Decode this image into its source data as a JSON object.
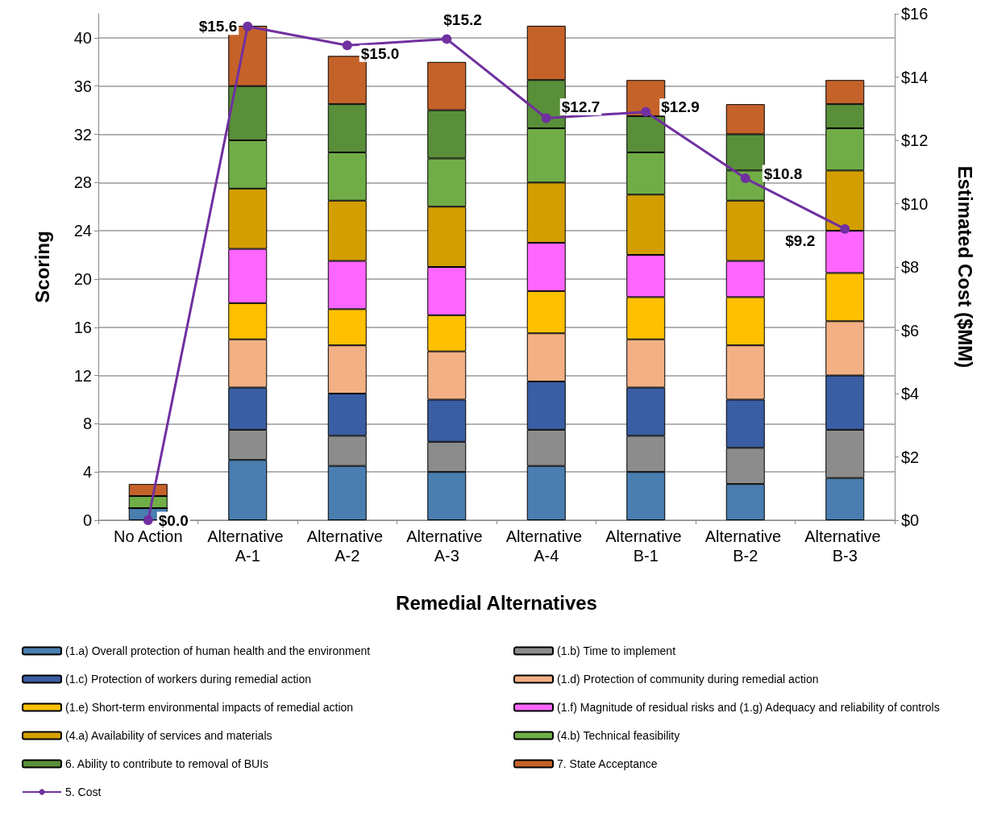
{
  "chart_data": {
    "type": "bar",
    "stacked": true,
    "xlabel": "Remedial Alternatives",
    "ylabel": "Scoring",
    "y2label": "Estimated Cost ($MM)",
    "categories": [
      "No Action",
      "Alternative A-1",
      "Alternative A-2",
      "Alternative A-3",
      "Alternative A-4",
      "Alternative B-1",
      "Alternative B-2",
      "Alternative B-3"
    ],
    "series": [
      {
        "name": "(1.a) Overall protection of human health and the environment",
        "color": "#4a7eb0",
        "values": [
          1,
          5,
          4.5,
          4,
          4.5,
          4,
          3,
          3.5
        ]
      },
      {
        "name": "(1.b) Time to implement",
        "color": "#8c8c8c",
        "values": [
          0,
          2.5,
          2.5,
          2.5,
          3,
          3,
          3,
          4
        ]
      },
      {
        "name": "(1.c) Protection of workers during remedial action",
        "color": "#3a5ea3",
        "values": [
          0,
          3.5,
          3.5,
          3.5,
          4,
          4,
          4,
          4.5
        ]
      },
      {
        "name": "(1.d) Protection of community during remedial action",
        "color": "#f2b084",
        "values": [
          0,
          4,
          4,
          4,
          4,
          4,
          4.5,
          4.5
        ]
      },
      {
        "name": "(1.e) Short-term environmental impacts of remedial action",
        "color": "#ffc000",
        "values": [
          0,
          3,
          3,
          3,
          3.5,
          3.5,
          4,
          4
        ]
      },
      {
        "name": "(1.f) Magnitude of residual risks and (1.g) Adequacy and reliability of controls",
        "color": "#ff66ff",
        "values": [
          0,
          4.5,
          4,
          4,
          4,
          3.5,
          3,
          3.5
        ]
      },
      {
        "name": "(4.a) Availability of services and materials",
        "color": "#d39e00",
        "values": [
          0,
          5,
          5,
          5,
          5,
          5,
          5,
          5
        ]
      },
      {
        "name": "(4.b) Technical feasibility",
        "color": "#70ad47",
        "values": [
          1,
          4,
          4,
          4,
          4.5,
          3.5,
          2.5,
          3.5
        ]
      },
      {
        "name": "6. Ability to contribute to removal of BUIs",
        "color": "#5a8f3a",
        "values": [
          0,
          4.5,
          4,
          4,
          4,
          3,
          3,
          2
        ]
      },
      {
        "name": "7. State Acceptance",
        "color": "#c5622a",
        "values": [
          1,
          5,
          4,
          4,
          4.5,
          3,
          2.5,
          2
        ]
      },
      {
        "name": "5. Cost",
        "type": "line",
        "axis": "y2",
        "color": "#7030a0",
        "values": [
          0,
          15.6,
          15.0,
          15.2,
          12.7,
          12.9,
          10.8,
          9.2
        ],
        "value_labels": [
          "$0.0",
          "$15.6",
          "$15.0",
          "$15.2",
          "$12.7",
          "$12.9",
          "$10.8",
          "$9.2"
        ]
      }
    ],
    "ylim": [
      0,
      42
    ],
    "yticks": [
      0,
      4,
      8,
      12,
      16,
      20,
      24,
      28,
      32,
      36,
      40
    ],
    "y2lim": [
      0,
      16
    ],
    "y2ticks": [
      {
        "value": 0,
        "label": "$0"
      },
      {
        "value": 2,
        "label": "$2"
      },
      {
        "value": 4,
        "label": "$4"
      },
      {
        "value": 6,
        "label": "$6"
      },
      {
        "value": 8,
        "label": "$8"
      },
      {
        "value": 10,
        "label": "$10"
      },
      {
        "value": 12,
        "label": "$12"
      },
      {
        "value": 14,
        "label": "$14"
      },
      {
        "value": 16,
        "label": "$16"
      }
    ],
    "grid": "y",
    "legend": "bottom",
    "marker": "circle"
  }
}
